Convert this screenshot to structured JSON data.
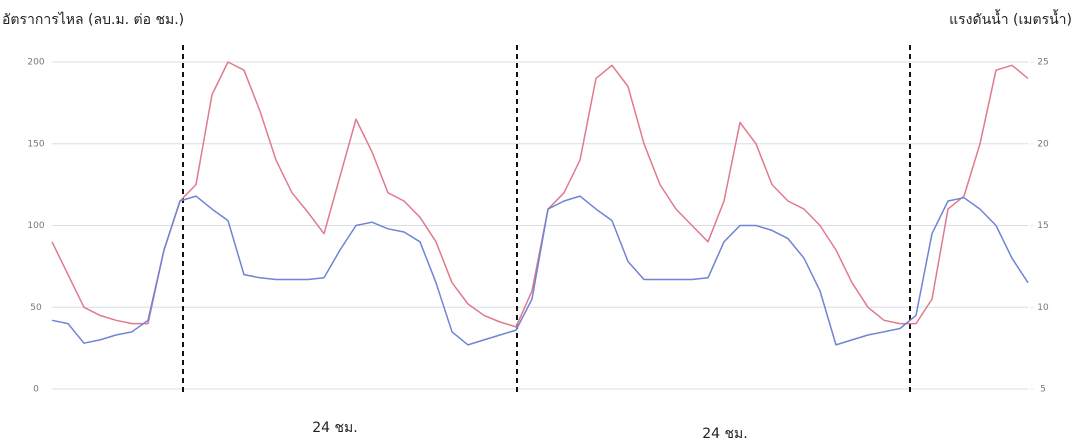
{
  "chart_data": {
    "type": "line",
    "y_label": "อัตราการไหล (ลบ.ม. ต่อ ชม.)",
    "y2_label": "แรงดันน้ำ (เมตรน้ำ)",
    "annotations": [
      "24 ชม.",
      "24 ชม."
    ],
    "categories": [
      null,
      null,
      null,
      null,
      null,
      null,
      null,
      null,
      null,
      null,
      null,
      null,
      null,
      null,
      null,
      null,
      null,
      null,
      null,
      null,
      null,
      null,
      null,
      null,
      null,
      null,
      null,
      null,
      null,
      null,
      null,
      null,
      null,
      null,
      null,
      null,
      null,
      null,
      null,
      null,
      null,
      null,
      null,
      null,
      null,
      null,
      null,
      null,
      null,
      null,
      null,
      null,
      null,
      null,
      null,
      null,
      null,
      null,
      null,
      null,
      null,
      null
    ],
    "ylim": [
      0,
      200
    ],
    "yticks": [
      0,
      50,
      100,
      150,
      200
    ],
    "y2lim": [
      5,
      25
    ],
    "y2ticks": [
      5,
      10,
      15,
      20,
      25
    ],
    "grid": true,
    "series": [
      {
        "color": "#e07a8c",
        "values": [
          90,
          70,
          50,
          45,
          42,
          40,
          40,
          85,
          115,
          125,
          180,
          200,
          195,
          170,
          140,
          120,
          108,
          95,
          130,
          165,
          145,
          120,
          115,
          105,
          90,
          65,
          52,
          45,
          41,
          38,
          60,
          110,
          120,
          140,
          190,
          198,
          185,
          150,
          125,
          110,
          100,
          90,
          115,
          163,
          150,
          125,
          115,
          110,
          100,
          85,
          65,
          50,
          42,
          40,
          40,
          55,
          110,
          118,
          150,
          195,
          198,
          190
        ]
      },
      {
        "color": "#6f84d4",
        "axis": "y2",
        "values": [
          9.2,
          9.0,
          7.8,
          8.0,
          8.3,
          8.5,
          9.2,
          13.5,
          16.5,
          16.8,
          16.0,
          15.3,
          12.0,
          11.8,
          11.7,
          11.7,
          11.7,
          11.8,
          13.5,
          15.0,
          15.2,
          14.8,
          14.6,
          14.0,
          11.5,
          8.5,
          7.7,
          8.0,
          8.3,
          8.6,
          10.5,
          16.0,
          16.5,
          16.8,
          16.0,
          15.3,
          12.8,
          11.7,
          11.7,
          11.7,
          11.7,
          11.8,
          14.0,
          15.0,
          15.0,
          14.7,
          14.2,
          13.0,
          11.0,
          7.7,
          8.0,
          8.3,
          8.5,
          8.7,
          9.5,
          14.5,
          16.5,
          16.7,
          16.0,
          15.0,
          13.0,
          11.5
        ]
      }
    ]
  }
}
